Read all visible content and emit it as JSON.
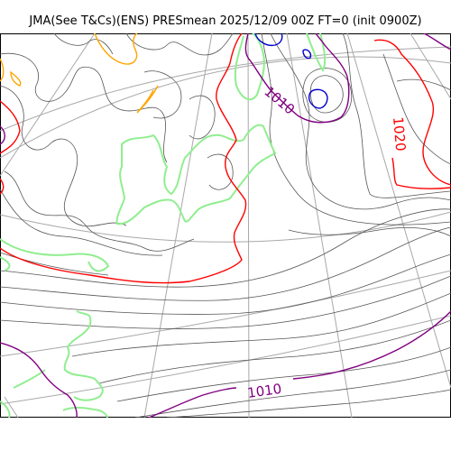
{
  "title": "JMA(See T&Cs)(ENS) PRESmean 2025/12/09 00Z FT=0 (init 0900Z)",
  "colors": {
    "background": "#ffffff",
    "grid": "#a8a8a8",
    "coastline": "#90ee90",
    "isobar": "#555555",
    "isobar_1010": "#800080",
    "isobar_1020": "#ff0000",
    "isobar_1030": "#ffa500",
    "isobar_low": "#0000cd"
  },
  "contour_labels": [
    {
      "text": "1010",
      "color": "purple",
      "id": "upper"
    },
    {
      "text": "1020",
      "color": "red",
      "id": "right"
    },
    {
      "text": "1010",
      "color": "purple",
      "id": "lower"
    }
  ]
}
